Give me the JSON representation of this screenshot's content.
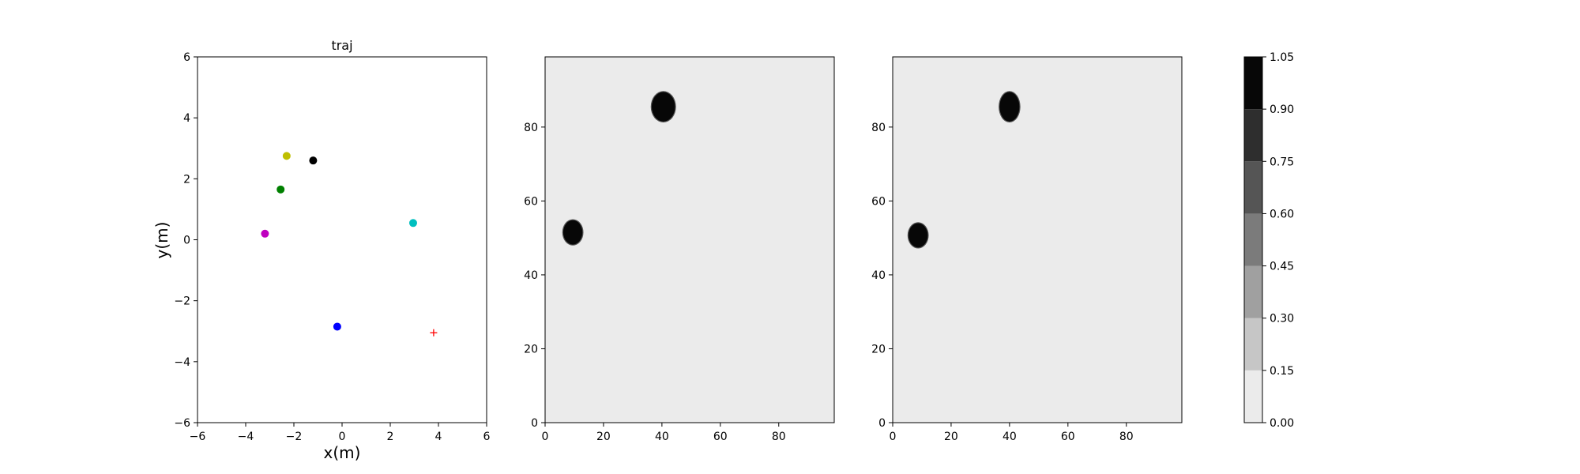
{
  "chart_data": [
    {
      "type": "scatter",
      "title": "traj",
      "xlabel": "x(m)",
      "ylabel": "y(m)",
      "xlim": [
        -6,
        6
      ],
      "ylim": [
        -6,
        6
      ],
      "xticks": [
        "−6",
        "−4",
        "−2",
        "0",
        "2",
        "4",
        "6"
      ],
      "xtick_values": [
        -6,
        -4,
        -2,
        0,
        2,
        4,
        6
      ],
      "yticks": [
        "−6",
        "−4",
        "−2",
        "0",
        "2",
        "4",
        "6"
      ],
      "ytick_values": [
        -6,
        -4,
        -2,
        0,
        2,
        4,
        6
      ],
      "grid": false,
      "points": [
        {
          "x": -2.3,
          "y": 2.75,
          "color": "#bfbf00",
          "marker": "circle"
        },
        {
          "x": -1.2,
          "y": 2.6,
          "color": "#000000",
          "marker": "circle"
        },
        {
          "x": -2.55,
          "y": 1.65,
          "color": "#008000",
          "marker": "circle"
        },
        {
          "x": -3.2,
          "y": 0.2,
          "color": "#bf00bf",
          "marker": "circle"
        },
        {
          "x": 2.95,
          "y": 0.55,
          "color": "#00bfbf",
          "marker": "circle"
        },
        {
          "x": -0.2,
          "y": -2.85,
          "color": "#0000ff",
          "marker": "circle"
        },
        {
          "x": 3.8,
          "y": -3.05,
          "color": "#ff0000",
          "marker": "plus"
        }
      ]
    },
    {
      "type": "heatmap",
      "title": "",
      "xlim": [
        0,
        99
      ],
      "ylim": [
        0,
        99
      ],
      "xticks": [
        "0",
        "20",
        "40",
        "60",
        "80"
      ],
      "xtick_values": [
        0,
        20,
        40,
        60,
        80
      ],
      "yticks": [
        "0",
        "20",
        "40",
        "60",
        "80"
      ],
      "ytick_values": [
        0,
        20,
        40,
        60,
        80
      ],
      "background_value": 0.0,
      "blobs": [
        {
          "cx": 9.5,
          "cy": 51.5,
          "rx": 3.3,
          "ry": 3.3,
          "value": 1.0
        },
        {
          "cx": 40.5,
          "cy": 85.5,
          "rx": 4.0,
          "ry": 4.0,
          "value": 1.0
        }
      ]
    },
    {
      "type": "heatmap",
      "title": "",
      "xlim": [
        0,
        99
      ],
      "ylim": [
        0,
        99
      ],
      "xticks": [
        "0",
        "20",
        "40",
        "60",
        "80"
      ],
      "xtick_values": [
        0,
        20,
        40,
        60,
        80
      ],
      "yticks": [
        "0",
        "20",
        "40",
        "60",
        "80"
      ],
      "ytick_values": [
        0,
        20,
        40,
        60,
        80
      ],
      "background_value": 0.0,
      "blobs": [
        {
          "cx": 8.7,
          "cy": 50.7,
          "rx": 3.3,
          "ry": 3.3,
          "value": 1.0
        },
        {
          "cx": 40.0,
          "cy": 85.5,
          "rx": 3.4,
          "ry": 4.0,
          "value": 1.0
        }
      ]
    }
  ],
  "colorbar": {
    "levels": [
      0.0,
      0.15,
      0.3,
      0.45,
      0.6,
      0.75,
      0.9,
      1.05
    ],
    "tick_labels": [
      "0.00",
      "0.15",
      "0.30",
      "0.45",
      "0.60",
      "0.75",
      "0.90",
      "1.05"
    ],
    "band_colors": [
      "#ebebeb",
      "#c6c6c6",
      "#a0a0a0",
      "#7b7b7b",
      "#555555",
      "#2e2e2e",
      "#070707"
    ]
  }
}
